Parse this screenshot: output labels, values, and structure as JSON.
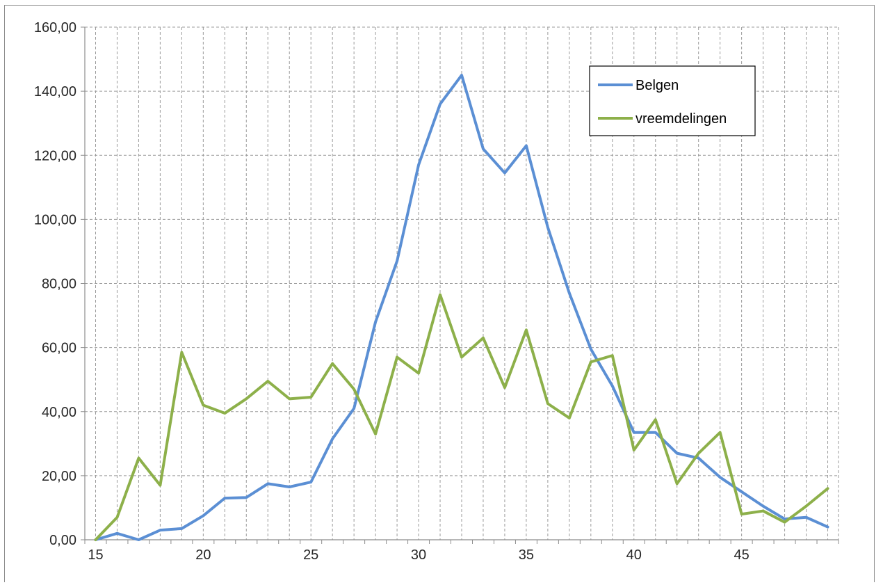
{
  "chart_data": {
    "type": "line",
    "title": "",
    "xlabel": "",
    "ylabel": "",
    "x": [
      15,
      16,
      17,
      18,
      19,
      20,
      21,
      22,
      23,
      24,
      25,
      26,
      27,
      28,
      29,
      30,
      31,
      32,
      33,
      34,
      35,
      36,
      37,
      38,
      39,
      40,
      41,
      42,
      43,
      44,
      45,
      46,
      47,
      48,
      49
    ],
    "xlim": [
      14.5,
      49.5
    ],
    "ylim": [
      0,
      160
    ],
    "x_ticks": [
      {
        "value": 15,
        "label": "15"
      },
      {
        "value": 20,
        "label": "20"
      },
      {
        "value": 25,
        "label": "25"
      },
      {
        "value": 30,
        "label": "30"
      },
      {
        "value": 35,
        "label": "35"
      },
      {
        "value": 40,
        "label": "40"
      },
      {
        "value": 45,
        "label": "45"
      }
    ],
    "y_ticks": [
      {
        "value": 0,
        "label": "0,00"
      },
      {
        "value": 20,
        "label": "20,00"
      },
      {
        "value": 40,
        "label": "40,00"
      },
      {
        "value": 60,
        "label": "60,00"
      },
      {
        "value": 80,
        "label": "80,00"
      },
      {
        "value": 100,
        "label": "100,00"
      },
      {
        "value": 120,
        "label": "120,00"
      },
      {
        "value": 140,
        "label": "140,00"
      },
      {
        "value": 160,
        "label": "160,00"
      }
    ],
    "grid": true,
    "legend_position": "top-right",
    "series": [
      {
        "name": "Belgen",
        "color": "#5B8FD4",
        "values": [
          0,
          2,
          0,
          3,
          3.5,
          7.5,
          13,
          13.2,
          17.5,
          16.5,
          18,
          31.5,
          41,
          68,
          87,
          117,
          136,
          145,
          122,
          114.5,
          123,
          97.5,
          77,
          59.5,
          48,
          33.5,
          33.5,
          27,
          25.5,
          19.5,
          15,
          10.5,
          6.5,
          7,
          4
        ]
      },
      {
        "name": "vreemdelingen",
        "color": "#8DB04A",
        "values": [
          0,
          7,
          25.5,
          17,
          58.5,
          42,
          39.5,
          44,
          49.5,
          44,
          44.5,
          55,
          47,
          33,
          57,
          52,
          76.5,
          57,
          63,
          47.5,
          65.5,
          42.5,
          38,
          55.5,
          57.5,
          28,
          37.5,
          17.5,
          27,
          33.5,
          8,
          9,
          5.5,
          10.5,
          16
        ]
      }
    ]
  }
}
